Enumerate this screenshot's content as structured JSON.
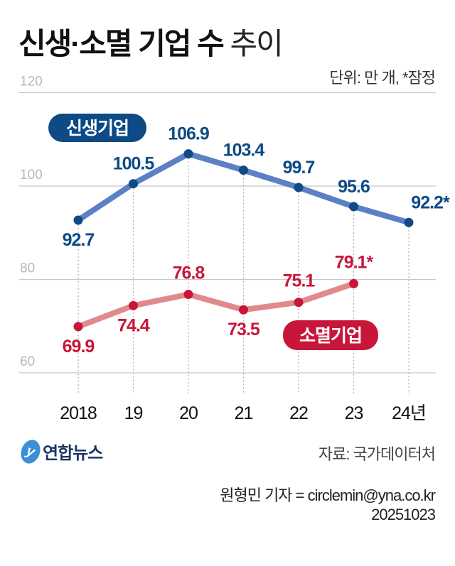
{
  "title_bold": "신생·소멸 기업 수",
  "title_light": "추이",
  "unit": "단위: 만 개, *잠정",
  "source": "자료: 국가데이터처",
  "credit": "원형민 기자 = circlemin@yna.co.kr",
  "date": "20251023",
  "logo_text": "연합뉴스",
  "chart_data": {
    "type": "line",
    "categories": [
      "2018",
      "19",
      "20",
      "21",
      "22",
      "23",
      "24년"
    ],
    "ylim": [
      60,
      120
    ],
    "yticks": [
      "60",
      "80",
      "100",
      "120"
    ],
    "grid": true,
    "series": [
      {
        "name": "신생기업",
        "color": "#5b80c6",
        "marker_color": "#0d4a86",
        "label_color": "#0d4a86",
        "values": [
          92.7,
          100.5,
          106.9,
          103.4,
          99.7,
          95.6,
          92.2
        ],
        "labels": [
          "92.7",
          "100.5",
          "106.9",
          "103.4",
          "99.7",
          "95.6",
          "92.2*"
        ]
      },
      {
        "name": "소멸기업",
        "color": "#e08a8c",
        "marker_color": "#c8163a",
        "label_color": "#c8163a",
        "values": [
          69.9,
          74.4,
          76.8,
          73.5,
          75.1,
          79.1,
          null
        ],
        "labels": [
          "69.9",
          "74.4",
          "76.8",
          "73.5",
          "75.1",
          "79.1*",
          ""
        ]
      }
    ]
  }
}
